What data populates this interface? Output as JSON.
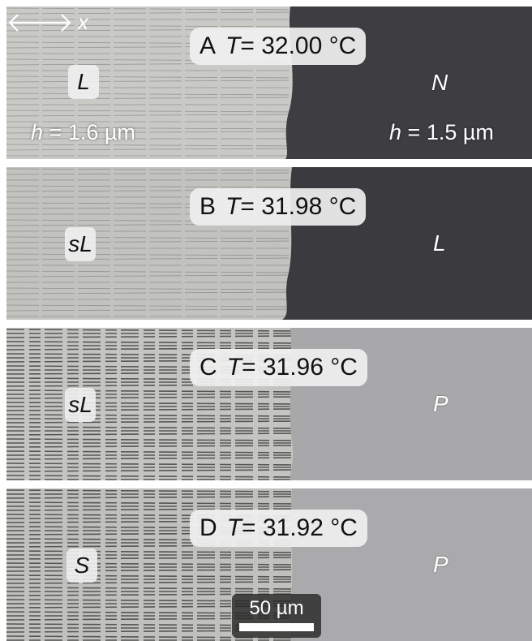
{
  "panels": [
    {
      "letter": "A",
      "t_sym": "T",
      "t_value": "= 32.00 °C",
      "left_label": "L",
      "right_label": "N",
      "thickness_left": "= 1.6 µm",
      "thickness_right": "= 1.5 µm",
      "h_symbol": "h"
    },
    {
      "letter": "B",
      "t_sym": "T",
      "t_value": "= 31.98 °C",
      "left_label": "sL",
      "right_label": "L"
    },
    {
      "letter": "C",
      "t_sym": "T",
      "t_value": "= 31.96 °C",
      "left_label": "sL",
      "right_label": "P"
    },
    {
      "letter": "D",
      "t_sym": "T",
      "t_value": "= 31.92 °C",
      "left_label": "S",
      "right_label": "P"
    }
  ],
  "axis_label": "x",
  "scale_bar": {
    "label": "50 µm"
  },
  "colors": {
    "left_texture_light": "#c9c9c6",
    "right_dark": "#3e3e42",
    "right_light": "#a6a6a8",
    "stripe": "#333333"
  },
  "icons": [
    "double-arrow-icon"
  ]
}
